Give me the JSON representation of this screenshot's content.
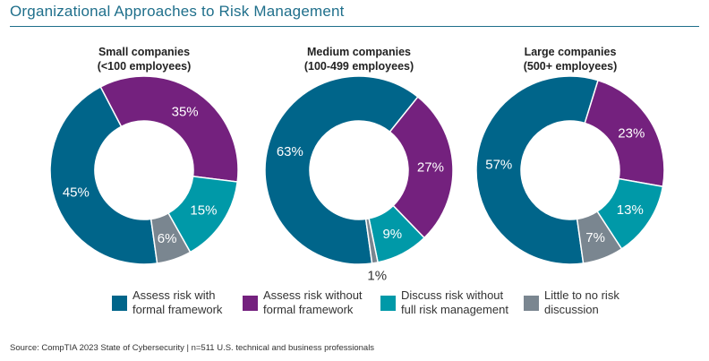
{
  "title": "Organizational Approaches to Risk Management",
  "source": "Source: CompTIA 2023 State of Cybersecurity | n=511 U.S. technical and business professionals",
  "chart_data": [
    {
      "type": "pie",
      "variant": "donut",
      "title": [
        "Small companies",
        "(<100 employees)"
      ],
      "values": [
        45,
        35,
        15,
        6
      ],
      "labels": [
        "45%",
        "35%",
        "15%",
        "6%"
      ]
    },
    {
      "type": "pie",
      "variant": "donut",
      "title": [
        "Medium companies",
        "(100-499 employees)"
      ],
      "values": [
        63,
        27,
        9,
        1
      ],
      "labels": [
        "63%",
        "27%",
        "9%",
        "1%"
      ]
    },
    {
      "type": "pie",
      "variant": "donut",
      "title": [
        "Large companies",
        "(500+ employees)"
      ],
      "values": [
        57,
        23,
        13,
        7
      ],
      "labels": [
        "57%",
        "23%",
        "13%",
        "7%"
      ]
    }
  ],
  "legend": [
    {
      "line1": "Assess risk with",
      "line2": "formal framework",
      "color": "#00658a"
    },
    {
      "line1": "Assess risk without",
      "line2": "formal framework",
      "color": "#74217e"
    },
    {
      "line1": "Discuss risk without",
      "line2": "full risk management",
      "color": "#0099a8"
    },
    {
      "line1": "Little to no risk",
      "line2": "discussion",
      "color": "#7a8690"
    }
  ]
}
